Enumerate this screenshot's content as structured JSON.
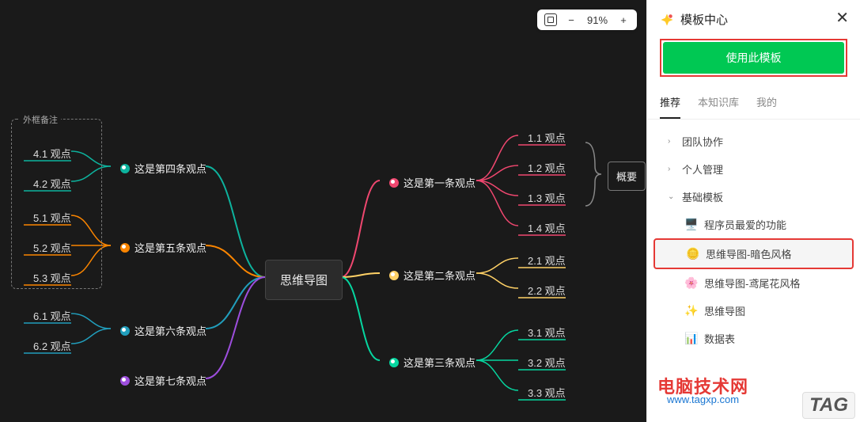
{
  "zoom": {
    "value": "91%"
  },
  "sidebar": {
    "title": "模板中心",
    "use_button": "使用此模板",
    "tabs": [
      {
        "label": "推荐",
        "active": true
      },
      {
        "label": "本知识库",
        "active": false
      },
      {
        "label": "我的",
        "active": false
      }
    ],
    "tree": [
      {
        "label": "团队协作",
        "level": 1,
        "chev": "›"
      },
      {
        "label": "个人管理",
        "level": 1,
        "chev": "›"
      },
      {
        "label": "基础模板",
        "level": 1,
        "chev": "⌄",
        "expanded": true
      },
      {
        "label": "程序员最爱的功能",
        "level": 2,
        "icon": "monitor"
      },
      {
        "label": "思维导图-暗色风格",
        "level": 2,
        "icon": "coin",
        "selected": true
      },
      {
        "label": "思维导图-鸢尾花风格",
        "level": 2,
        "icon": "flower"
      },
      {
        "label": "思维导图",
        "level": 2,
        "icon": "sparkle"
      },
      {
        "label": "数据表",
        "level": 2,
        "icon": "chart"
      }
    ]
  },
  "mindmap": {
    "center": "思维导图",
    "note_box_title": "外框备注",
    "summary_label": "概要",
    "colors": {
      "red": "#ef476f",
      "yellow": "#ffd166",
      "green": "#06d6a0",
      "teal": "#0db39e",
      "orange": "#fb8500",
      "blue": "#219ebc",
      "purple": "#9d4edd"
    },
    "right_branches": [
      {
        "label": "这是第一条观点",
        "color": "#ef476f",
        "children": [
          "1.1 观点",
          "1.2 观点",
          "1.3 观点",
          "1.4 观点"
        ]
      },
      {
        "label": "这是第二条观点",
        "color": "#ffd166",
        "children": [
          "2.1 观点",
          "2.2 观点"
        ]
      },
      {
        "label": "这是第三条观点",
        "color": "#06d6a0",
        "children": [
          "3.1 观点",
          "3.2 观点",
          "3.3 观点"
        ]
      }
    ],
    "left_branches": [
      {
        "label": "这是第四条观点",
        "color": "#0db39e",
        "children": [
          "4.1 观点",
          "4.2 观点"
        ],
        "boxed": true
      },
      {
        "label": "这是第五条观点",
        "color": "#fb8500",
        "children": [
          "5.1 观点",
          "5.2 观点",
          "5.3 观点"
        ],
        "boxed": true
      },
      {
        "label": "这是第六条观点",
        "color": "#219ebc",
        "children": [
          "6.1 观点",
          "6.2 观点"
        ]
      },
      {
        "label": "这是第七条观点",
        "color": "#9d4edd",
        "children": []
      }
    ]
  },
  "watermark": {
    "line1": "电脑技术网",
    "line2": "www.tagxp.com",
    "tag": "TAG"
  }
}
